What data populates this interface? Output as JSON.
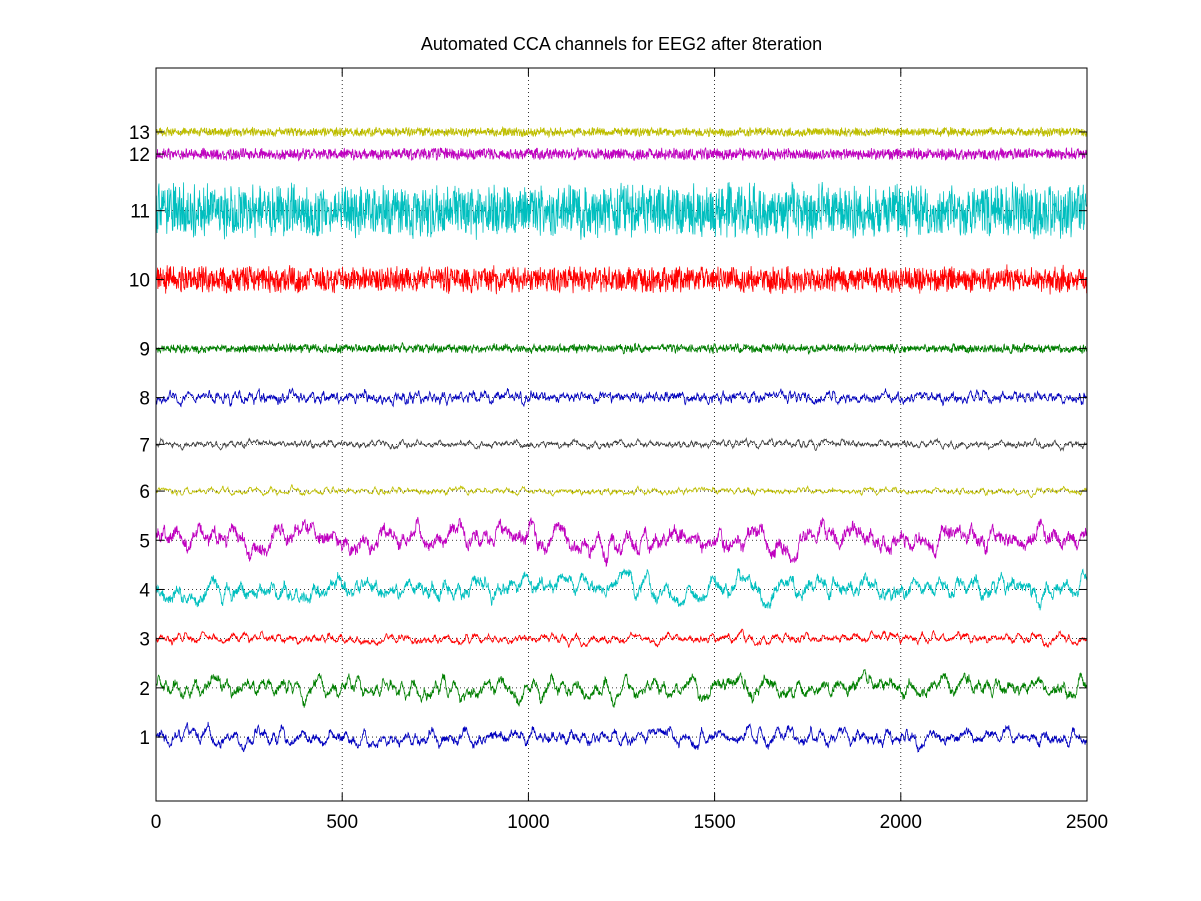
{
  "chart_data": {
    "type": "line",
    "title": "Automated CCA channels for EEG2 after  8teration",
    "xlabel": "",
    "ylabel": "",
    "xlim": [
      0,
      2500
    ],
    "xticks": [
      0,
      500,
      1000,
      1500,
      2000,
      2500
    ],
    "x_grid": true,
    "y_grid": true,
    "n_samples": 2500,
    "channel_labels": [
      "1",
      "2",
      "3",
      "4",
      "5",
      "6",
      "7",
      "8",
      "9",
      "10",
      "11",
      "12",
      "13"
    ],
    "series": [
      {
        "channel": "1",
        "color": "#0000bf",
        "offset": 1,
        "amplitude": 0.32,
        "dominant_freq": 0.05
      },
      {
        "channel": "2",
        "color": "#007f00",
        "offset": 2,
        "amplitude": 0.42,
        "dominant_freq": 0.045
      },
      {
        "channel": "3",
        "color": "#ff0000",
        "offset": 3,
        "amplitude": 0.2,
        "dominant_freq": 0.06
      },
      {
        "channel": "4",
        "color": "#00bfbf",
        "offset": 4,
        "amplitude": 0.45,
        "dominant_freq": 0.04
      },
      {
        "channel": "5",
        "color": "#bf00bf",
        "offset": 5,
        "amplitude": 0.55,
        "dominant_freq": 0.035
      },
      {
        "channel": "6",
        "color": "#bfbf00",
        "offset": 6,
        "amplitude": 0.14,
        "dominant_freq": 0.08
      },
      {
        "channel": "7",
        "color": "#3f3f3f",
        "offset": 6.95,
        "amplitude": 0.13,
        "dominant_freq": 0.09
      },
      {
        "channel": "8",
        "color": "#0000bf",
        "offset": 7.9,
        "amplitude": 0.2,
        "dominant_freq": 0.12
      },
      {
        "channel": "9",
        "color": "#007f00",
        "offset": 8.9,
        "amplitude": 0.12,
        "dominant_freq": 0.2
      },
      {
        "channel": "10",
        "color": "#ff0000",
        "offset": 10.3,
        "amplitude": 0.32,
        "dominant_freq": 0.3
      },
      {
        "channel": "11",
        "color": "#00bfbf",
        "offset": 11.7,
        "amplitude": 0.62,
        "dominant_freq": 0.28
      },
      {
        "channel": "12",
        "color": "#bf00bf",
        "offset": 12.85,
        "amplitude": 0.14,
        "dominant_freq": 0.32
      },
      {
        "channel": "13",
        "color": "#bfbf00",
        "offset": 13.3,
        "amplitude": 0.11,
        "dominant_freq": 0.35
      }
    ],
    "ylim": [
      -0.3,
      14.6
    ]
  }
}
